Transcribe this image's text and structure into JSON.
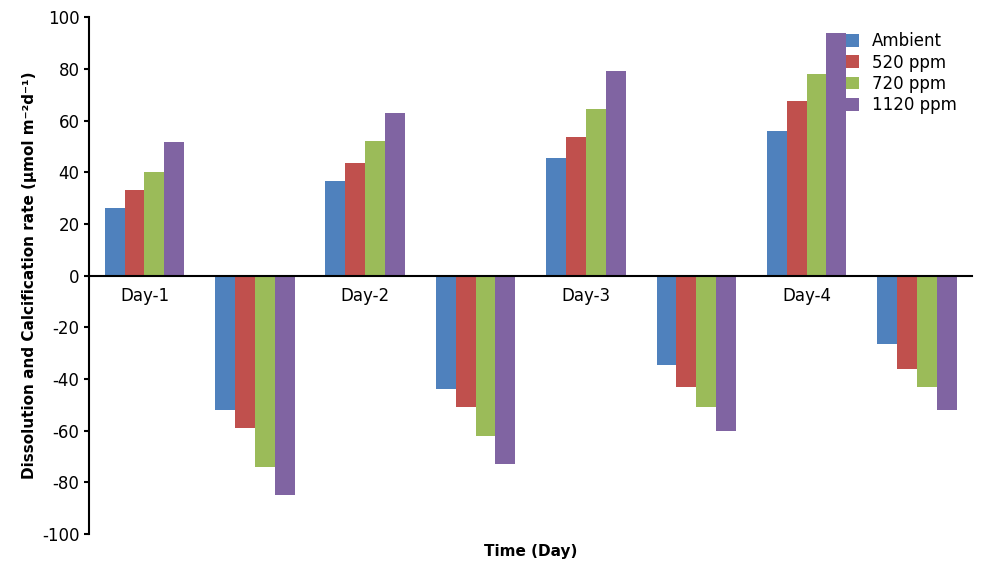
{
  "chart_data": {
    "type": "bar",
    "x_label": "Time (Day)",
    "y_label": "Dissolution and Calcification rate (µmol m⁻²d⁻¹)",
    "categories": [
      "Day-1",
      null,
      "Day-2",
      null,
      "Day-3",
      null,
      "Day-4",
      null
    ],
    "series": [
      {
        "name": "Ambient",
        "color": "#4f81bd",
        "values": [
          26,
          -52,
          36.5,
          -44,
          45.5,
          -34.5,
          56,
          -26.5
        ]
      },
      {
        "name": "520 ppm",
        "color": "#c0504d",
        "values": [
          33,
          -59,
          43.5,
          -51,
          53.5,
          -43,
          67.5,
          -36
        ]
      },
      {
        "name": "720 ppm",
        "color": "#9bbb59",
        "values": [
          40,
          -74,
          52,
          -62,
          64.5,
          -51,
          78,
          -43
        ]
      },
      {
        "name": "1120 ppm",
        "color": "#8064a2",
        "values": [
          51.5,
          -85,
          63,
          -73,
          79,
          -60,
          94,
          -52
        ]
      }
    ],
    "ylim": [
      -100,
      100
    ],
    "yticks": [
      -100,
      -80,
      -60,
      -40,
      -20,
      0,
      20,
      40,
      60,
      80,
      100
    ],
    "legend": "upper right",
    "grid": false
  }
}
